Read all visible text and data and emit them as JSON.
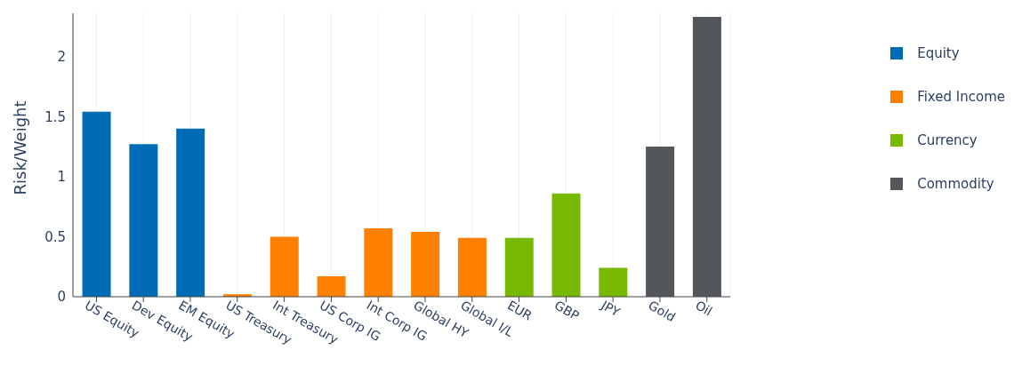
{
  "chart_data": {
    "type": "bar",
    "ylabel": "Risk/Weight",
    "categories": [
      "US Equity",
      "Dev Equity",
      "EM Equity",
      "US Treasury",
      "Int Treasury",
      "US Corp IG",
      "Int Corp IG",
      "Global HY",
      "Global I/L",
      "EUR",
      "GBP",
      "JPY",
      "Gold",
      "Oil"
    ],
    "series": [
      {
        "name": "Equity",
        "color": "#006bb6",
        "values": [
          1.54,
          1.27,
          1.4,
          null,
          null,
          null,
          null,
          null,
          null,
          null,
          null,
          null,
          null,
          null
        ]
      },
      {
        "name": "Fixed Income",
        "color": "#ff7f00",
        "values": [
          null,
          null,
          null,
          0.02,
          0.5,
          0.17,
          0.57,
          0.54,
          0.49,
          null,
          null,
          null,
          null,
          null
        ]
      },
      {
        "name": "Currency",
        "color": "#77b800",
        "values": [
          null,
          null,
          null,
          null,
          null,
          null,
          null,
          null,
          null,
          0.49,
          0.86,
          0.24,
          null,
          null
        ]
      },
      {
        "name": "Commodity",
        "color": "#53565a",
        "values": [
          null,
          null,
          null,
          null,
          null,
          null,
          null,
          null,
          null,
          null,
          null,
          null,
          1.25,
          2.33
        ]
      }
    ],
    "ylim": [
      0,
      2.36
    ],
    "yticks": [
      0,
      0.5,
      1,
      1.5,
      2
    ],
    "grid": "x",
    "legend": "right"
  }
}
